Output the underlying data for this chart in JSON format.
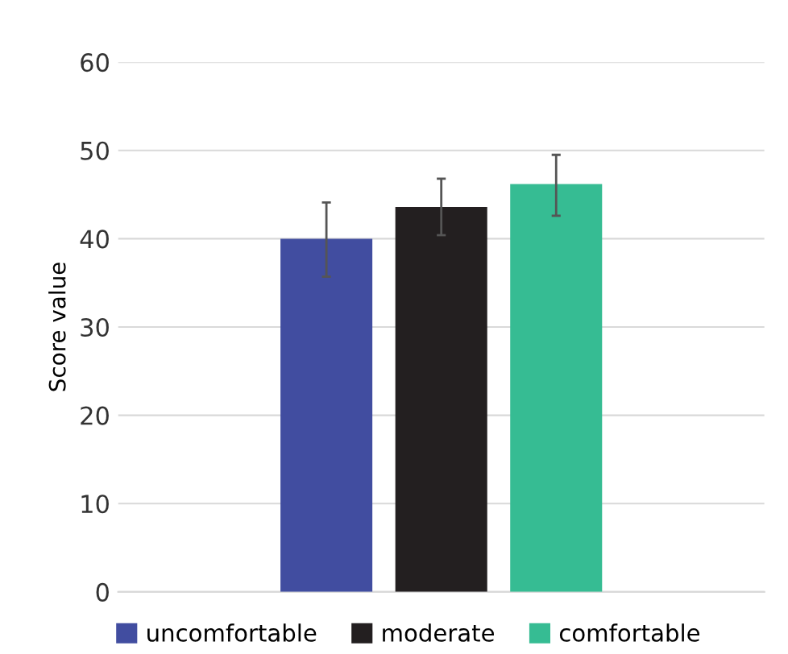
{
  "chart_data": {
    "type": "bar",
    "ylabel": "Score value",
    "categories": [
      null
    ],
    "series": [
      {
        "name": "uncomfortable",
        "color": "#414da0",
        "values": [
          40.0
        ],
        "errors": [
          [
            35.7,
            44.1
          ]
        ]
      },
      {
        "name": "moderate",
        "color": "#231f20",
        "values": [
          43.6
        ],
        "errors": [
          [
            40.4,
            46.8
          ]
        ]
      },
      {
        "name": "comfortable",
        "color": "#36bc93",
        "values": [
          46.2
        ],
        "errors": [
          [
            42.6,
            49.5
          ]
        ]
      }
    ],
    "ylim": [
      0,
      60
    ],
    "yticks": [
      0,
      10,
      20,
      30,
      40,
      50,
      60
    ],
    "grid": "y",
    "legend": "bottom"
  }
}
